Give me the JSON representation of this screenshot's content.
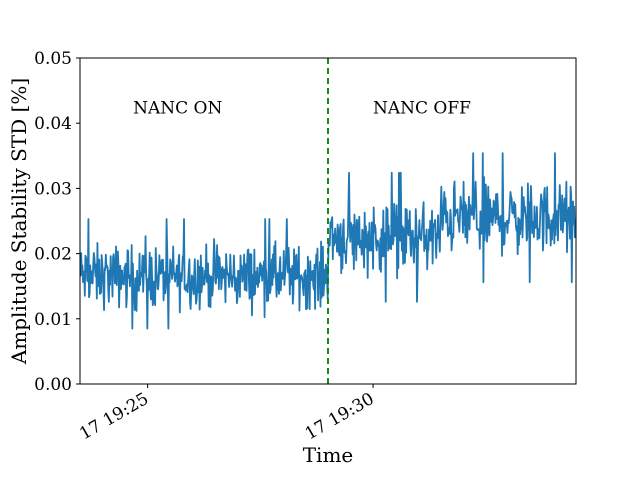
{
  "chart_data": {
    "type": "line",
    "title": "",
    "xlabel": "Time",
    "ylabel": "Amplitude Stability STD [%]",
    "x_range": [
      "19:23:30",
      "19:34:30"
    ],
    "ylim": [
      0,
      0.05
    ],
    "yticks": [
      "0.00",
      "0.01",
      "0.02",
      "0.03",
      "0.04",
      "0.05"
    ],
    "xticks": [
      {
        "time": "19:25:00",
        "label": "17 19:25"
      },
      {
        "time": "19:30:00",
        "label": "17 19:30"
      }
    ],
    "grid": false,
    "legend": "none",
    "series": [
      {
        "color": "#1f77b4",
        "segments": [
          {
            "t_start": "19:23:30",
            "t_end": "19:29:00",
            "mean": 0.0165,
            "spread": 0.004,
            "min": 0.0085,
            "max": 0.0265
          },
          {
            "t_start": "19:29:00",
            "t_end": "19:31:30",
            "mean": 0.0225,
            "spread": 0.0045,
            "min": 0.009,
            "max": 0.036
          },
          {
            "t_start": "19:31:30",
            "t_end": "19:34:30",
            "mean": 0.0255,
            "spread": 0.0045,
            "min": 0.0135,
            "max": 0.037
          }
        ]
      }
    ],
    "vline": {
      "time": "19:29:00",
      "color": "#008000",
      "style": "dashed"
    },
    "annotations": [
      {
        "text": "NANC ON",
        "time": "19:25:40",
        "y": 0.0415
      },
      {
        "text": "NANC OFF",
        "time": "19:31:05",
        "y": 0.0415
      }
    ]
  }
}
